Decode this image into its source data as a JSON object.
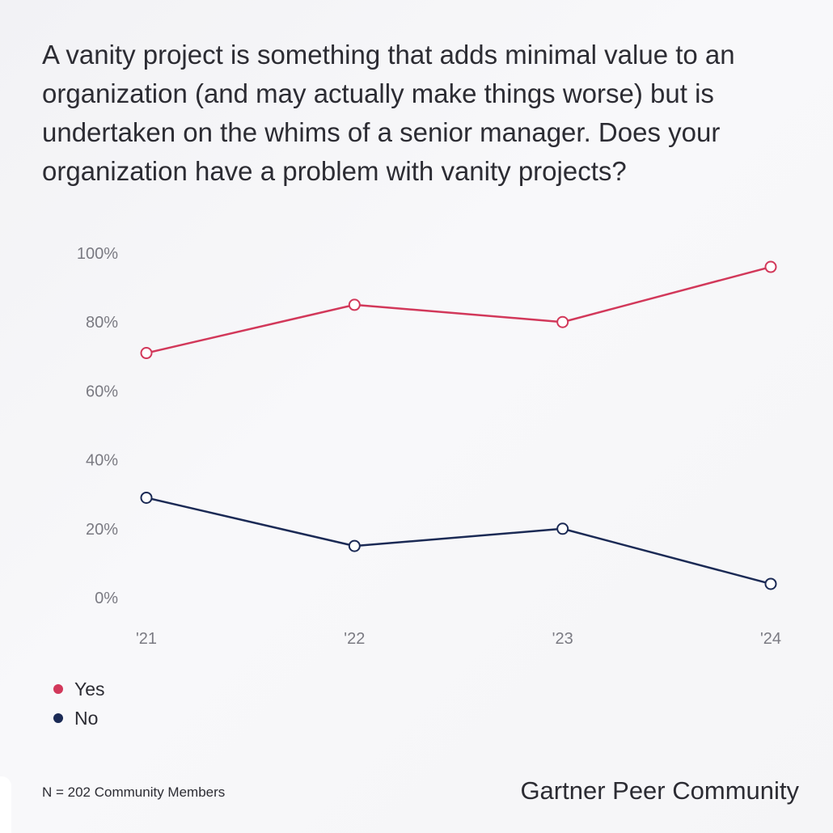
{
  "question": "A vanity project is something that adds minimal value to an organization (and may actually make things worse) but is undertaken on the whims of a senior manager. Does your organization have a problem with vanity projects?",
  "footnote": "N = 202 Community Members",
  "brand": "Gartner Peer Community",
  "chart_data": {
    "type": "line",
    "title": "",
    "xlabel": "",
    "ylabel": "",
    "categories": [
      "'21",
      "'22",
      "'23",
      "'24"
    ],
    "y_ticks": [
      "0%",
      "20%",
      "40%",
      "60%",
      "80%",
      "100%"
    ],
    "ylim": [
      0,
      100
    ],
    "grid": false,
    "legend_position": "bottom-left",
    "series": [
      {
        "name": "Yes",
        "color": "#d2385a",
        "values": [
          71,
          85,
          80,
          96
        ]
      },
      {
        "name": "No",
        "color": "#1b2a55",
        "values": [
          29,
          15,
          20,
          4
        ]
      }
    ]
  }
}
